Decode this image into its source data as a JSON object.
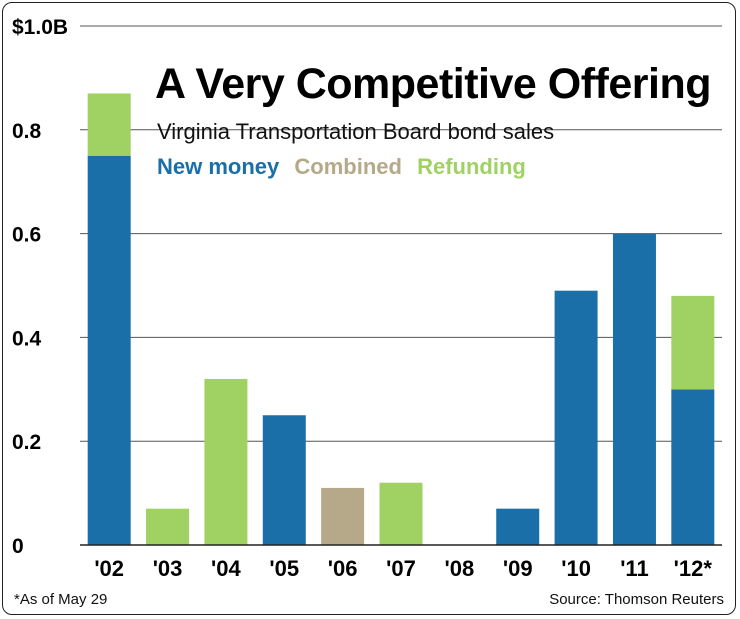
{
  "chart_data": {
    "type": "bar",
    "stacked": true,
    "title": "A Very Competitive Offering",
    "subtitle": "Virginia Transportation Board bond sales",
    "categories": [
      "'02",
      "'03",
      "'04",
      "'05",
      "'06",
      "'07",
      "'08",
      "'09",
      "'10",
      "'11",
      "'12*"
    ],
    "series": [
      {
        "name": "New money",
        "color": "#1b6fa8",
        "values": [
          0.75,
          0,
          0,
          0.25,
          0,
          0,
          0,
          0.07,
          0.49,
          0.6,
          0.3
        ]
      },
      {
        "name": "Combined",
        "color": "#b6a98a",
        "values": [
          0,
          0,
          0,
          0,
          0.11,
          0,
          0,
          0,
          0,
          0,
          0
        ]
      },
      {
        "name": "Refunding",
        "color": "#9fd163",
        "values": [
          0.12,
          0.07,
          0.32,
          0,
          0,
          0.12,
          0,
          0,
          0,
          0,
          0.18
        ]
      }
    ],
    "yticks": [
      "0",
      "0.2",
      "0.4",
      "0.6",
      "0.8",
      "$1.0B"
    ],
    "ytick_values": [
      0,
      0.2,
      0.4,
      0.6,
      0.8,
      1.0
    ],
    "ylim": [
      0,
      1.0
    ],
    "grid": true,
    "footnote": "*As of May 29",
    "source": "Source: Thomson Reuters"
  }
}
